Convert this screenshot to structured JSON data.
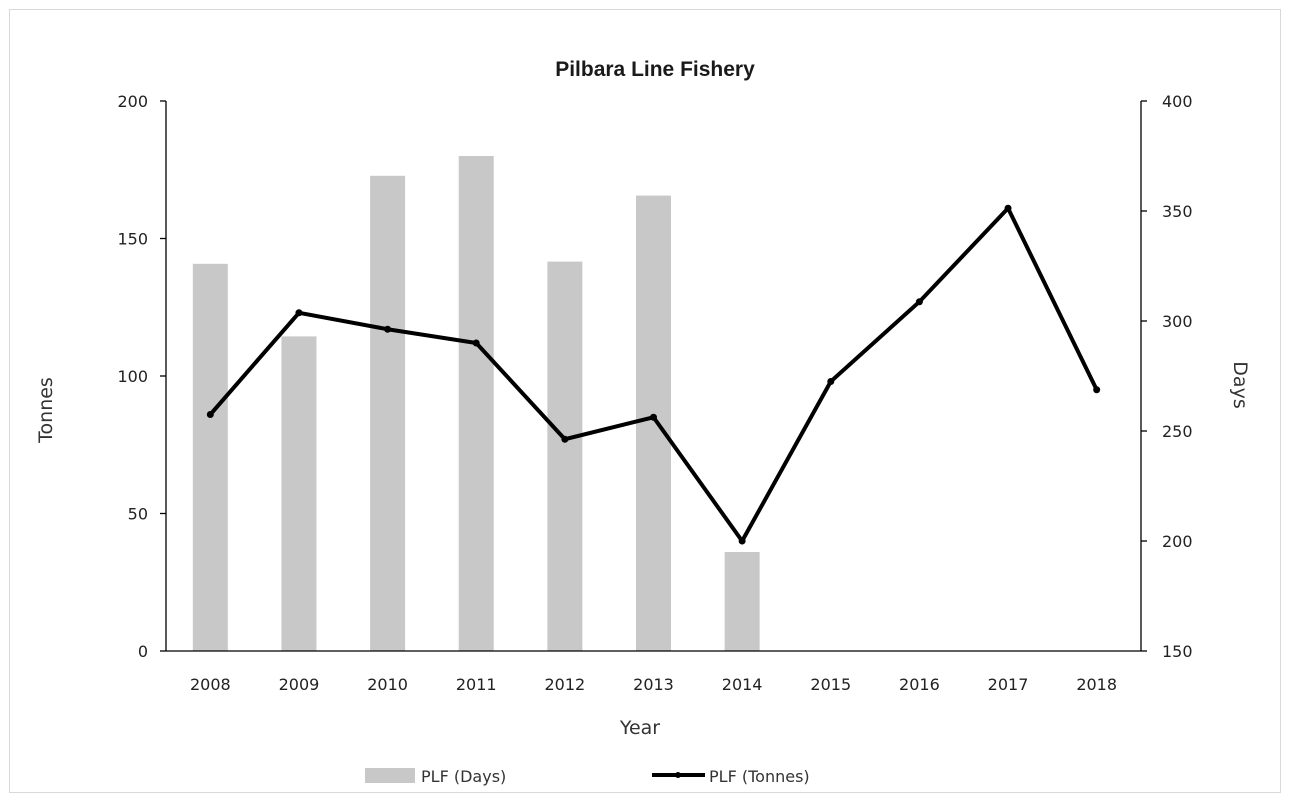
{
  "chart_data": {
    "type": "bar+line",
    "title": "Pilbara Line Fishery",
    "xlabel": "Year",
    "ylabel_left": "Tonnes",
    "ylabel_right": "Days",
    "categories": [
      "2008",
      "2009",
      "2010",
      "2011",
      "2012",
      "2013",
      "2014",
      "2015",
      "2016",
      "2017",
      "2018"
    ],
    "left_axis": {
      "min": 0,
      "max": 200,
      "ticks": [
        0,
        50,
        100,
        150,
        200
      ]
    },
    "right_axis": {
      "min": 150,
      "max": 400,
      "ticks": [
        150,
        200,
        250,
        300,
        350,
        400
      ]
    },
    "series": [
      {
        "name": "PLF (Days)",
        "type": "bar",
        "axis": "right",
        "color": "#c8c8c8",
        "values": [
          326,
          293,
          366,
          375,
          327,
          357,
          195,
          null,
          null,
          null,
          null
        ]
      },
      {
        "name": "PLF (Tonnes)",
        "type": "line",
        "axis": "left",
        "color": "#000000",
        "values": [
          86,
          123,
          117,
          112,
          77,
          85,
          40,
          98,
          127,
          161,
          95
        ]
      }
    ],
    "legend_position": "bottom",
    "grid": false
  }
}
